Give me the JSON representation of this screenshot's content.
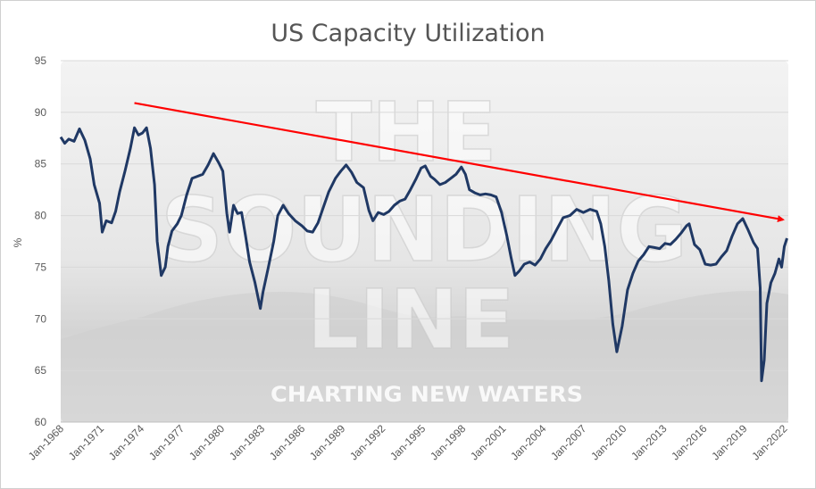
{
  "chart_data": {
    "type": "line",
    "title": "US Capacity Utilization",
    "ylabel": "%",
    "xlabel": "",
    "ylim": [
      60,
      95
    ],
    "yticks": [
      60,
      65,
      70,
      75,
      80,
      85,
      90,
      95
    ],
    "x_range": [
      1968.0,
      2022.3
    ],
    "xtick_labels": [
      "Jan-1968",
      "Jan-1971",
      "Jan-1974",
      "Jan-1977",
      "Jan-1980",
      "Jan-1983",
      "Jan-1986",
      "Jan-1989",
      "Jan-1992",
      "Jan-1995",
      "Jan-1998",
      "Jan-2001",
      "Jan-2004",
      "Jan-2007",
      "Jan-2010",
      "Jan-2013",
      "Jan-2016",
      "Jan-2019",
      "Jan-2022"
    ],
    "grid": true,
    "legend": "none",
    "series": [
      {
        "color": "#1f3864",
        "points": [
          [
            1968.0,
            87.6
          ],
          [
            1968.3,
            87.0
          ],
          [
            1968.6,
            87.4
          ],
          [
            1969.0,
            87.2
          ],
          [
            1969.4,
            88.4
          ],
          [
            1969.8,
            87.3
          ],
          [
            1970.2,
            85.5
          ],
          [
            1970.5,
            83.0
          ],
          [
            1970.9,
            81.2
          ],
          [
            1971.1,
            78.4
          ],
          [
            1971.4,
            79.5
          ],
          [
            1971.8,
            79.3
          ],
          [
            1972.1,
            80.4
          ],
          [
            1972.4,
            82.3
          ],
          [
            1972.8,
            84.3
          ],
          [
            1973.2,
            86.5
          ],
          [
            1973.5,
            88.5
          ],
          [
            1973.8,
            87.8
          ],
          [
            1974.1,
            88.0
          ],
          [
            1974.4,
            88.5
          ],
          [
            1974.7,
            86.5
          ],
          [
            1975.0,
            83.0
          ],
          [
            1975.2,
            77.5
          ],
          [
            1975.5,
            74.2
          ],
          [
            1975.8,
            75.0
          ],
          [
            1976.0,
            77.0
          ],
          [
            1976.3,
            78.5
          ],
          [
            1976.7,
            79.2
          ],
          [
            1977.0,
            80.0
          ],
          [
            1977.4,
            82.0
          ],
          [
            1977.8,
            83.6
          ],
          [
            1978.2,
            83.8
          ],
          [
            1978.6,
            84.0
          ],
          [
            1979.0,
            84.9
          ],
          [
            1979.4,
            86.0
          ],
          [
            1979.8,
            85.1
          ],
          [
            1980.1,
            84.3
          ],
          [
            1980.4,
            80.2
          ],
          [
            1980.6,
            78.4
          ],
          [
            1980.9,
            81.0
          ],
          [
            1981.2,
            80.2
          ],
          [
            1981.5,
            80.3
          ],
          [
            1981.8,
            78.0
          ],
          [
            1982.1,
            75.5
          ],
          [
            1982.5,
            73.5
          ],
          [
            1982.9,
            71.0
          ],
          [
            1983.1,
            72.6
          ],
          [
            1983.5,
            75.0
          ],
          [
            1983.9,
            77.5
          ],
          [
            1984.2,
            80.0
          ],
          [
            1984.6,
            81.0
          ],
          [
            1985.0,
            80.2
          ],
          [
            1985.5,
            79.5
          ],
          [
            1986.0,
            79.0
          ],
          [
            1986.4,
            78.5
          ],
          [
            1986.8,
            78.4
          ],
          [
            1987.2,
            79.3
          ],
          [
            1987.6,
            80.8
          ],
          [
            1988.0,
            82.3
          ],
          [
            1988.5,
            83.6
          ],
          [
            1988.9,
            84.3
          ],
          [
            1989.3,
            84.9
          ],
          [
            1989.7,
            84.2
          ],
          [
            1990.1,
            83.2
          ],
          [
            1990.6,
            82.7
          ],
          [
            1991.0,
            80.5
          ],
          [
            1991.3,
            79.5
          ],
          [
            1991.7,
            80.3
          ],
          [
            1992.1,
            80.1
          ],
          [
            1992.5,
            80.4
          ],
          [
            1992.9,
            81.0
          ],
          [
            1993.3,
            81.4
          ],
          [
            1993.7,
            81.6
          ],
          [
            1994.1,
            82.5
          ],
          [
            1994.5,
            83.5
          ],
          [
            1994.9,
            84.6
          ],
          [
            1995.2,
            84.8
          ],
          [
            1995.6,
            83.8
          ],
          [
            1995.9,
            83.5
          ],
          [
            1996.3,
            83.0
          ],
          [
            1996.7,
            83.2
          ],
          [
            1997.1,
            83.6
          ],
          [
            1997.5,
            84.0
          ],
          [
            1997.9,
            84.7
          ],
          [
            1998.2,
            84.0
          ],
          [
            1998.5,
            82.5
          ],
          [
            1998.9,
            82.2
          ],
          [
            1999.3,
            82.0
          ],
          [
            1999.7,
            82.1
          ],
          [
            2000.1,
            82.0
          ],
          [
            2000.5,
            81.8
          ],
          [
            2000.9,
            80.3
          ],
          [
            2001.3,
            78.0
          ],
          [
            2001.6,
            76.0
          ],
          [
            2001.9,
            74.2
          ],
          [
            2002.2,
            74.6
          ],
          [
            2002.6,
            75.3
          ],
          [
            2003.0,
            75.5
          ],
          [
            2003.4,
            75.2
          ],
          [
            2003.8,
            75.8
          ],
          [
            2004.2,
            76.8
          ],
          [
            2004.6,
            77.6
          ],
          [
            2005.0,
            78.6
          ],
          [
            2005.5,
            79.8
          ],
          [
            2006.0,
            80.0
          ],
          [
            2006.5,
            80.6
          ],
          [
            2007.0,
            80.3
          ],
          [
            2007.5,
            80.6
          ],
          [
            2008.0,
            80.4
          ],
          [
            2008.3,
            79.2
          ],
          [
            2008.6,
            77.0
          ],
          [
            2008.9,
            73.7
          ],
          [
            2009.2,
            69.5
          ],
          [
            2009.5,
            66.8
          ],
          [
            2009.9,
            69.3
          ],
          [
            2010.3,
            72.8
          ],
          [
            2010.7,
            74.4
          ],
          [
            2011.1,
            75.6
          ],
          [
            2011.5,
            76.2
          ],
          [
            2011.9,
            77.0
          ],
          [
            2012.3,
            76.9
          ],
          [
            2012.7,
            76.8
          ],
          [
            2013.1,
            77.3
          ],
          [
            2013.5,
            77.2
          ],
          [
            2013.9,
            77.7
          ],
          [
            2014.3,
            78.3
          ],
          [
            2014.7,
            79.0
          ],
          [
            2014.9,
            79.2
          ],
          [
            2015.3,
            77.2
          ],
          [
            2015.7,
            76.7
          ],
          [
            2016.1,
            75.3
          ],
          [
            2016.5,
            75.2
          ],
          [
            2016.9,
            75.3
          ],
          [
            2017.3,
            76.0
          ],
          [
            2017.7,
            76.6
          ],
          [
            2018.1,
            78.0
          ],
          [
            2018.5,
            79.2
          ],
          [
            2018.9,
            79.7
          ],
          [
            2019.3,
            78.6
          ],
          [
            2019.7,
            77.4
          ],
          [
            2020.0,
            76.8
          ],
          [
            2020.2,
            73.0
          ],
          [
            2020.3,
            64.0
          ],
          [
            2020.5,
            66.0
          ],
          [
            2020.7,
            71.5
          ],
          [
            2021.0,
            73.5
          ],
          [
            2021.3,
            74.4
          ],
          [
            2021.6,
            75.8
          ],
          [
            2021.8,
            75.0
          ],
          [
            2022.0,
            77.0
          ],
          [
            2022.2,
            77.8
          ]
        ]
      }
    ],
    "annotations": [
      {
        "type": "trend-arrow",
        "color": "#ff0000",
        "from": [
          1973.5,
          90.9
        ],
        "to": [
          2022.3,
          79.6
        ]
      }
    ],
    "watermark": {
      "lines": [
        "THE",
        "SOUNDING",
        "LINE"
      ],
      "tagline": "CHARTING NEW WATERS"
    }
  }
}
